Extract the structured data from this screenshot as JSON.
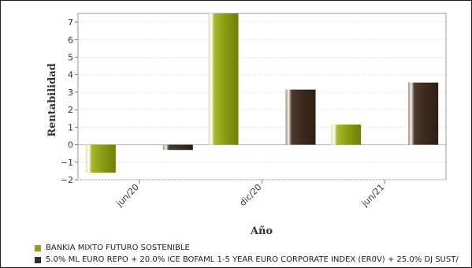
{
  "chart_data": {
    "type": "bar",
    "categories": [
      "jun/20",
      "dic/20",
      "jun/21"
    ],
    "series": [
      {
        "name": "BANKIA MIXTO FUTURO SOSTENIBLE",
        "color": "#8fa01a",
        "values": [
          -1.6,
          7.5,
          1.15
        ]
      },
      {
        "name": "5.0% ML EURO REPO + 20.0% ICE BOFAML 1-5 YEAR EURO CORPORATE INDEX (ER0V) + 25.0% DJ SUST/",
        "color": "#3d2a1e",
        "values": [
          -0.3,
          3.15,
          3.55
        ]
      }
    ],
    "xlabel": "Año",
    "ylabel": "Rentabilidad",
    "ylim": [
      -2,
      7.5
    ],
    "yticks": [
      -2,
      -1,
      0,
      1,
      2,
      3,
      4,
      5,
      6,
      7
    ],
    "grid": true,
    "legend": "bottom"
  }
}
